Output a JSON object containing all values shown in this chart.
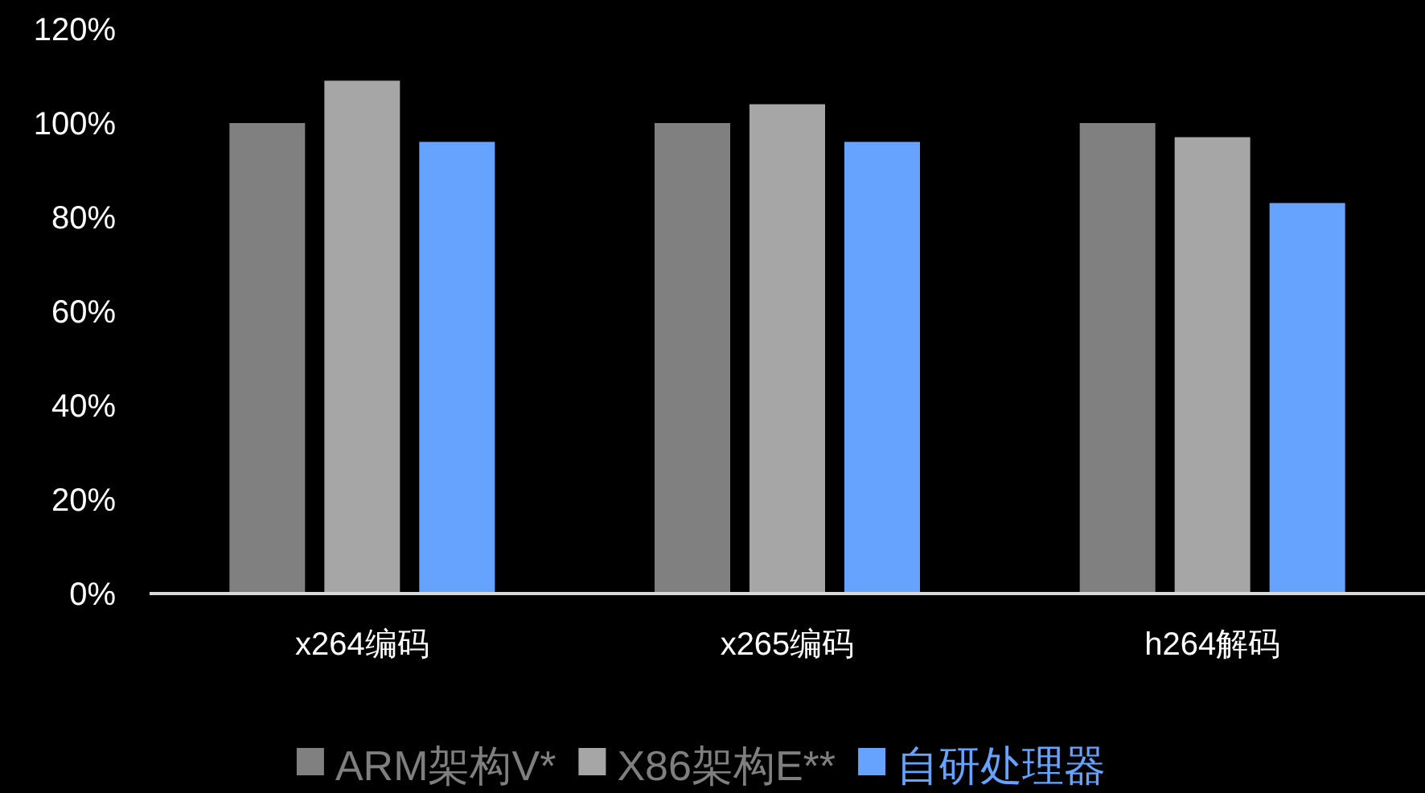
{
  "chart_data": {
    "type": "bar",
    "categories": [
      "x264编码",
      "x265编码",
      "h264解码"
    ],
    "series": [
      {
        "name": "ARM架构V*",
        "color": "#808080",
        "values": [
          100,
          100,
          100
        ]
      },
      {
        "name": "X86架构E**",
        "color": "#a6a6a6",
        "values": [
          109,
          104,
          97
        ]
      },
      {
        "name": "自研处理器",
        "color": "#66a3ff",
        "values": [
          96,
          96,
          83
        ]
      }
    ],
    "ylim": [
      0,
      120
    ],
    "yticks": [
      {
        "value": 0,
        "label": "0%"
      },
      {
        "value": 20,
        "label": "20%"
      },
      {
        "value": 40,
        "label": "40%"
      },
      {
        "value": 60,
        "label": "60%"
      },
      {
        "value": 80,
        "label": "80%"
      },
      {
        "value": 100,
        "label": "100%"
      },
      {
        "value": 120,
        "label": "120%"
      }
    ],
    "grid": false,
    "legend": "bottom"
  }
}
